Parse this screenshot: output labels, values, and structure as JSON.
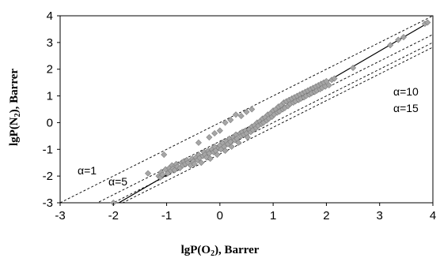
{
  "chart_data": {
    "type": "scatter",
    "title": "",
    "xlabel_main": "lgP(O",
    "xlabel_sub": "2",
    "xlabel_tail": "), Barrer",
    "ylabel_main": "lgP(N",
    "ylabel_sub": "2",
    "ylabel_tail": "), Barrer",
    "xlim": [
      -3,
      4
    ],
    "ylim": [
      -3,
      4
    ],
    "xticks": [
      "-3",
      "-2",
      "-1",
      "0",
      "1",
      "2",
      "3",
      "4"
    ],
    "yticks": [
      "-3",
      "-2",
      "-1",
      "0",
      "1",
      "2",
      "3",
      "4"
    ],
    "grid": false,
    "marker_color": "#a6a6a6",
    "marker_edge": "#7f7f7f",
    "lines": [
      {
        "label": "α=1",
        "alpha": 1,
        "style": "dashed"
      },
      {
        "label": "α=5",
        "alpha": 5,
        "style": "dashed"
      },
      {
        "label": "α=10",
        "alpha": 10,
        "style": "dashed"
      },
      {
        "label": "α=15",
        "alpha": 15,
        "style": "dashed"
      }
    ],
    "fit_line": {
      "slope": 1.16,
      "intercept": -0.8,
      "style": "solid",
      "x_range": [
        -1.97,
        3.9
      ]
    },
    "points": [
      [
        -2.0,
        -3.0
      ],
      [
        -1.35,
        -1.9
      ],
      [
        -1.15,
        -2.0
      ],
      [
        -1.12,
        -2.05
      ],
      [
        -1.1,
        -1.85
      ],
      [
        -1.08,
        -1.95
      ],
      [
        -1.02,
        -1.75
      ],
      [
        -0.98,
        -1.9
      ],
      [
        -0.95,
        -1.7
      ],
      [
        -0.92,
        -1.8
      ],
      [
        -0.9,
        -1.6
      ],
      [
        -0.88,
        -1.72
      ],
      [
        -0.85,
        -1.78
      ],
      [
        -0.82,
        -1.55
      ],
      [
        -1.05,
        -1.2
      ],
      [
        -0.8,
        -1.65
      ],
      [
        -0.75,
        -1.7
      ],
      [
        -0.72,
        -1.5
      ],
      [
        -0.7,
        -1.6
      ],
      [
        -0.68,
        -1.45
      ],
      [
        -0.65,
        -1.55
      ],
      [
        -0.62,
        -1.4
      ],
      [
        -0.6,
        -1.5
      ],
      [
        -0.55,
        -1.6
      ],
      [
        -0.52,
        -1.35
      ],
      [
        -0.5,
        -1.45
      ],
      [
        -0.48,
        -1.55
      ],
      [
        -0.45,
        -1.3
      ],
      [
        -0.42,
        -1.4
      ],
      [
        -0.4,
        -1.2
      ],
      [
        -0.38,
        -1.32
      ],
      [
        -0.35,
        -1.5
      ],
      [
        -0.32,
        -1.25
      ],
      [
        -0.3,
        -1.1
      ],
      [
        -0.28,
        -1.2
      ],
      [
        -0.25,
        -1.3
      ],
      [
        -0.22,
        -1.05
      ],
      [
        -0.2,
        -1.15
      ],
      [
        -0.18,
        -1.35
      ],
      [
        -0.15,
        -1.0
      ],
      [
        -0.12,
        -1.1
      ],
      [
        -0.1,
        -0.9
      ],
      [
        -0.08,
        -1.05
      ],
      [
        -0.05,
        -1.2
      ],
      [
        -0.02,
        -0.95
      ],
      [
        0.0,
        -0.85
      ],
      [
        0.02,
        -1.0
      ],
      [
        0.05,
        -0.75
      ],
      [
        0.08,
        -0.9
      ],
      [
        0.1,
        -1.05
      ],
      [
        0.12,
        -0.7
      ],
      [
        0.15,
        -0.8
      ],
      [
        0.18,
        -0.6
      ],
      [
        0.2,
        -0.72
      ],
      [
        0.22,
        -0.9
      ],
      [
        0.25,
        -0.55
      ],
      [
        0.28,
        -0.65
      ],
      [
        0.3,
        -0.45
      ],
      [
        0.32,
        -0.6
      ],
      [
        0.35,
        -0.75
      ],
      [
        0.38,
        -0.4
      ],
      [
        0.4,
        -0.5
      ],
      [
        0.42,
        -0.35
      ],
      [
        0.45,
        -0.45
      ],
      [
        0.48,
        -0.3
      ],
      [
        0.5,
        -0.4
      ],
      [
        0.52,
        -0.55
      ],
      [
        0.55,
        -0.25
      ],
      [
        0.58,
        -0.35
      ],
      [
        0.6,
        -0.15
      ],
      [
        0.62,
        -0.28
      ],
      [
        0.65,
        -0.1
      ],
      [
        0.68,
        -0.2
      ],
      [
        0.7,
        0.0
      ],
      [
        0.72,
        -0.12
      ],
      [
        0.75,
        0.05
      ],
      [
        0.78,
        -0.05
      ],
      [
        0.8,
        0.15
      ],
      [
        0.82,
        0.0
      ],
      [
        0.85,
        0.2
      ],
      [
        0.88,
        0.08
      ],
      [
        0.9,
        0.3
      ],
      [
        0.92,
        0.15
      ],
      [
        0.95,
        0.35
      ],
      [
        0.98,
        0.22
      ],
      [
        1.0,
        0.45
      ],
      [
        1.02,
        0.3
      ],
      [
        1.05,
        0.5
      ],
      [
        1.08,
        0.38
      ],
      [
        1.1,
        0.6
      ],
      [
        1.12,
        0.42
      ],
      [
        1.15,
        0.65
      ],
      [
        1.18,
        0.5
      ],
      [
        1.2,
        0.75
      ],
      [
        1.22,
        0.55
      ],
      [
        1.25,
        0.8
      ],
      [
        1.28,
        0.62
      ],
      [
        1.3,
        0.85
      ],
      [
        1.32,
        0.7
      ],
      [
        1.35,
        0.9
      ],
      [
        1.38,
        0.75
      ],
      [
        1.4,
        0.95
      ],
      [
        1.42,
        0.8
      ],
      [
        1.45,
        1.0
      ],
      [
        1.48,
        0.85
      ],
      [
        1.5,
        1.05
      ],
      [
        1.52,
        0.9
      ],
      [
        1.55,
        1.1
      ],
      [
        1.58,
        0.95
      ],
      [
        1.6,
        1.15
      ],
      [
        1.62,
        1.0
      ],
      [
        1.65,
        1.2
      ],
      [
        1.68,
        1.05
      ],
      [
        1.7,
        1.25
      ],
      [
        1.72,
        1.1
      ],
      [
        1.75,
        1.3
      ],
      [
        1.78,
        1.15
      ],
      [
        1.8,
        1.35
      ],
      [
        1.82,
        1.2
      ],
      [
        1.85,
        1.4
      ],
      [
        1.88,
        1.25
      ],
      [
        1.9,
        1.45
      ],
      [
        1.92,
        1.3
      ],
      [
        1.95,
        1.5
      ],
      [
        1.98,
        1.35
      ],
      [
        2.0,
        1.55
      ],
      [
        2.05,
        1.4
      ],
      [
        2.1,
        1.6
      ],
      [
        2.15,
        1.65
      ],
      [
        0.3,
        0.3
      ],
      [
        0.4,
        0.25
      ],
      [
        0.5,
        0.4
      ],
      [
        0.2,
        0.1
      ],
      [
        0.1,
        0.0
      ],
      [
        0.6,
        0.5
      ],
      [
        -0.2,
        -0.55
      ],
      [
        -0.1,
        -0.4
      ],
      [
        0.0,
        -0.3
      ],
      [
        -0.4,
        -0.75
      ],
      [
        2.5,
        2.05
      ],
      [
        3.2,
        2.9
      ],
      [
        3.35,
        3.1
      ],
      [
        3.45,
        3.2
      ],
      [
        3.85,
        3.7
      ],
      [
        3.9,
        3.75
      ]
    ]
  }
}
